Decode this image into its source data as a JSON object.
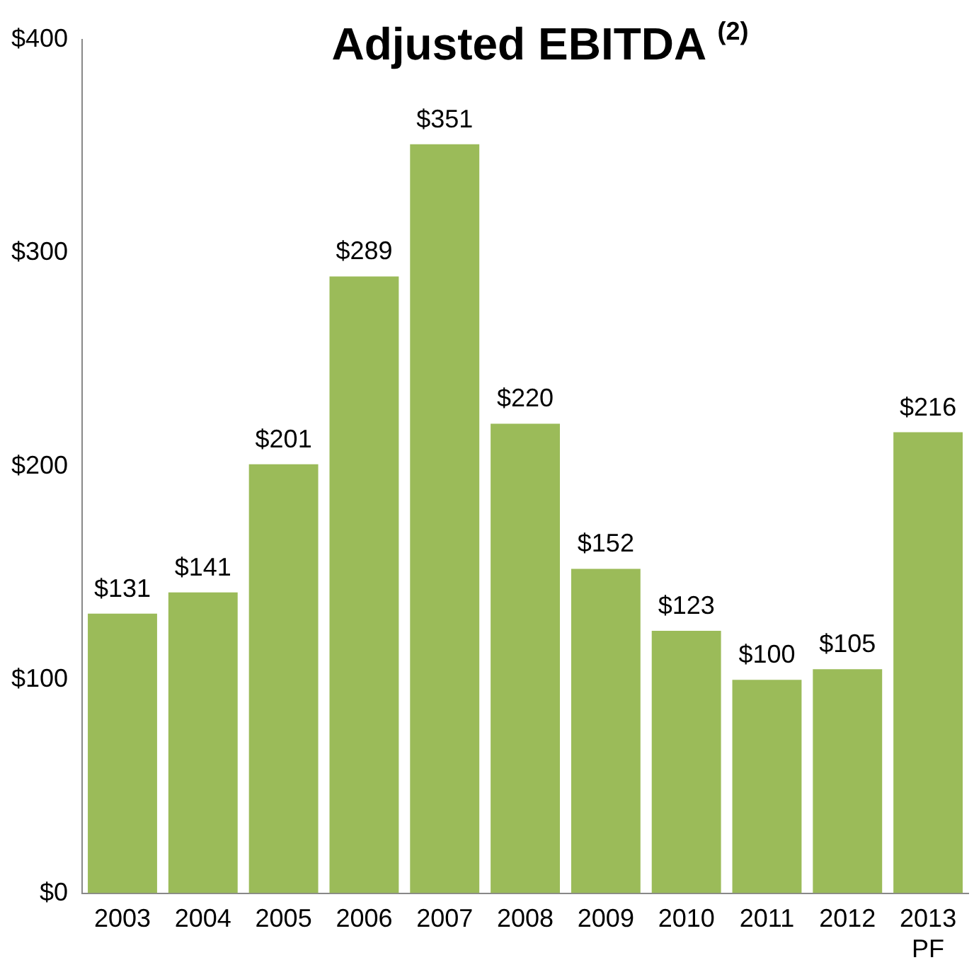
{
  "chart_data": {
    "type": "bar",
    "title": "Adjusted EBITDA $^{(2)}$",
    "categories": [
      "2003",
      "2004",
      "2005",
      "2006",
      "2007",
      "2008",
      "2009",
      "2010",
      "2011",
      "2012",
      "2013\nPF"
    ],
    "values": [
      131,
      141,
      201,
      289,
      351,
      220,
      152,
      123,
      100,
      105,
      216
    ],
    "value_labels": [
      "$131",
      "$141",
      "$201",
      "$289",
      "$351",
      "$220",
      "$152",
      "$123",
      "$100",
      "$105",
      "$216"
    ],
    "color": "#9bbb59",
    "ylim": [
      0,
      400
    ],
    "yticks": [
      {
        "value": 0,
        "label": "$0"
      },
      {
        "value": 100,
        "label": "$100"
      },
      {
        "value": 200,
        "label": "$200"
      },
      {
        "value": 300,
        "label": "$300"
      },
      {
        "value": 400,
        "label": "$400"
      }
    ],
    "grid": false,
    "legend": false
  }
}
